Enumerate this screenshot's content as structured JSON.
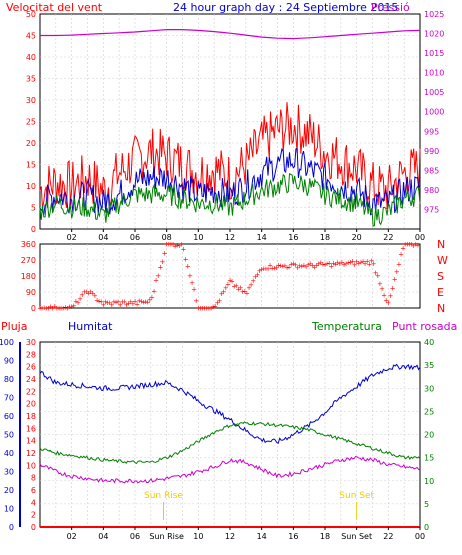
{
  "colors": {
    "red": "#ff0000",
    "blue": "#0000cc",
    "green": "#008000",
    "magenta": "#cc00cc",
    "grid": "#d0d0d0",
    "yellow": "#e8d000"
  },
  "header": {
    "wind_title": "Velocitat del vent",
    "date_title": "24 hour graph day : 24 Septiembre 2015",
    "pressure_title": "Pressió"
  },
  "wind_dir_labels": [
    "N",
    "W",
    "S",
    "E",
    "N"
  ],
  "bottom_titles": {
    "rain": "Pluja",
    "humidity": "Humitat",
    "temperature": "Temperatura",
    "dewpoint": "Punt rosada"
  },
  "sun": {
    "rise_label": "Sun Rise",
    "set_label": "Sun Set",
    "rise_hour": 7.8,
    "set_hour": 20.0
  },
  "x_ticks": [
    "02",
    "04",
    "06",
    "08",
    "10",
    "12",
    "14",
    "16",
    "18",
    "20",
    "22",
    "00"
  ],
  "bottom_x_ticks": [
    "02",
    "04",
    "06",
    "Sun Rise",
    "10",
    "12",
    "14",
    "16",
    "18",
    "Sun Set",
    "22",
    "00"
  ],
  "chart_data": [
    {
      "type": "line",
      "title": "24 hour graph day : 24 Septiembre 2015",
      "ylabel": "Velocitat del vent",
      "y2label": "Pressió",
      "ylim": [
        0,
        50
      ],
      "y2lim": [
        970,
        1025
      ],
      "yticks": [
        "0",
        "5",
        "10",
        "15",
        "20",
        "25",
        "30",
        "35",
        "40",
        "45",
        "50"
      ],
      "y2ticks": [
        "975",
        "980",
        "985",
        "990",
        "995",
        "1000",
        "1005",
        "1010",
        "1015",
        "1020",
        "1025"
      ],
      "x": [
        0,
        1,
        2,
        3,
        4,
        5,
        6,
        7,
        8,
        9,
        10,
        11,
        12,
        13,
        14,
        15,
        16,
        17,
        18,
        19,
        20,
        21,
        22,
        23,
        24
      ],
      "series": [
        {
          "axis": "left",
          "color": "#ff0000",
          "values": [
            9,
            11,
            10,
            12,
            9,
            13,
            16,
            18,
            17,
            15,
            13,
            14,
            12,
            15,
            20,
            23,
            24,
            22,
            18,
            16,
            14,
            10,
            9,
            13,
            14
          ]
        },
        {
          "axis": "left",
          "color": "#0000cc",
          "values": [
            6,
            8,
            7,
            8,
            6,
            8,
            11,
            12,
            12,
            10,
            8,
            9,
            8,
            10,
            13,
            15,
            16,
            14,
            12,
            10,
            9,
            6,
            6,
            9,
            10
          ]
        },
        {
          "axis": "left",
          "color": "#008000",
          "values": [
            4,
            6,
            5,
            5,
            3,
            6,
            8,
            8,
            8,
            7,
            6,
            6,
            5,
            7,
            9,
            10,
            11,
            10,
            8,
            7,
            6,
            3,
            4,
            7,
            8
          ]
        },
        {
          "axis": "right",
          "color": "#cc00cc",
          "values": [
            1019.5,
            1019.5,
            1019.6,
            1019.8,
            1020.0,
            1020.2,
            1020.4,
            1020.7,
            1021.0,
            1021.0,
            1020.8,
            1020.5,
            1020.1,
            1019.6,
            1019.1,
            1018.8,
            1018.7,
            1018.9,
            1019.2,
            1019.5,
            1019.8,
            1020.1,
            1020.4,
            1020.7,
            1020.8
          ]
        }
      ]
    },
    {
      "type": "scatter",
      "ylabel": "N W S E N",
      "ylim": [
        0,
        360
      ],
      "yticks": [
        "0",
        "90",
        "180",
        "270",
        "360"
      ],
      "x": [
        0,
        1,
        2,
        3,
        4,
        5,
        6,
        7,
        8,
        9,
        10,
        11,
        12,
        13,
        14,
        15,
        16,
        17,
        18,
        19,
        20,
        21,
        22,
        23,
        24
      ],
      "values": [
        0,
        0,
        0,
        100,
        25,
        30,
        30,
        40,
        360,
        360,
        0,
        0,
        150,
        80,
        230,
        235,
        240,
        240,
        245,
        250,
        255,
        260,
        20,
        360,
        360
      ]
    },
    {
      "type": "line",
      "ylim": [
        0,
        100
      ],
      "y2lim": [
        0,
        40
      ],
      "y3lim": [
        0,
        30
      ],
      "blue_yticks": [
        "0",
        "10",
        "20",
        "30",
        "40",
        "50",
        "60",
        "70",
        "80",
        "90",
        "100"
      ],
      "red_yticks": [
        "0",
        "2",
        "4",
        "6",
        "8",
        "10",
        "12",
        "14",
        "16",
        "18",
        "20",
        "22",
        "24",
        "26",
        "28",
        "30"
      ],
      "green_yticks": [
        "0",
        "5",
        "10",
        "15",
        "20",
        "25",
        "30",
        "35",
        "40"
      ],
      "x": [
        0,
        1,
        2,
        3,
        4,
        5,
        6,
        7,
        8,
        9,
        10,
        11,
        12,
        13,
        14,
        15,
        16,
        17,
        18,
        19,
        20,
        21,
        22,
        23,
        24
      ],
      "series": [
        {
          "name": "Humitat",
          "axis": "blue",
          "color": "#0000cc",
          "values": [
            84,
            78,
            77,
            76,
            75,
            75,
            76,
            77,
            78,
            74,
            68,
            63,
            58,
            52,
            47,
            46,
            50,
            55,
            62,
            70,
            76,
            82,
            86,
            87,
            86
          ]
        },
        {
          "name": "Temperatura",
          "axis": "green",
          "color": "#008000",
          "values": [
            17,
            16,
            15.5,
            15,
            14.5,
            14.2,
            14,
            14,
            15,
            16.5,
            18.5,
            20.5,
            22,
            22.5,
            22.3,
            22,
            21.6,
            21,
            20,
            19,
            18,
            17,
            16,
            15,
            15
          ]
        },
        {
          "name": "Punt rosada",
          "axis": "green",
          "color": "#cc00cc",
          "values": [
            13.5,
            12,
            11,
            10.5,
            10,
            10,
            10,
            10,
            10.5,
            11,
            12,
            13,
            14.5,
            14,
            12.5,
            11,
            11.5,
            12.5,
            13.5,
            14.5,
            15,
            14.5,
            13.5,
            13,
            12.5
          ]
        },
        {
          "name": "Pluja",
          "axis": "red",
          "color": "#ff0000",
          "values": [
            0,
            0,
            0,
            0,
            0,
            0,
            0,
            0,
            0,
            0,
            0,
            0,
            0,
            0,
            0,
            0,
            0,
            0,
            0,
            0,
            0,
            0,
            0,
            0,
            0
          ]
        }
      ]
    }
  ]
}
